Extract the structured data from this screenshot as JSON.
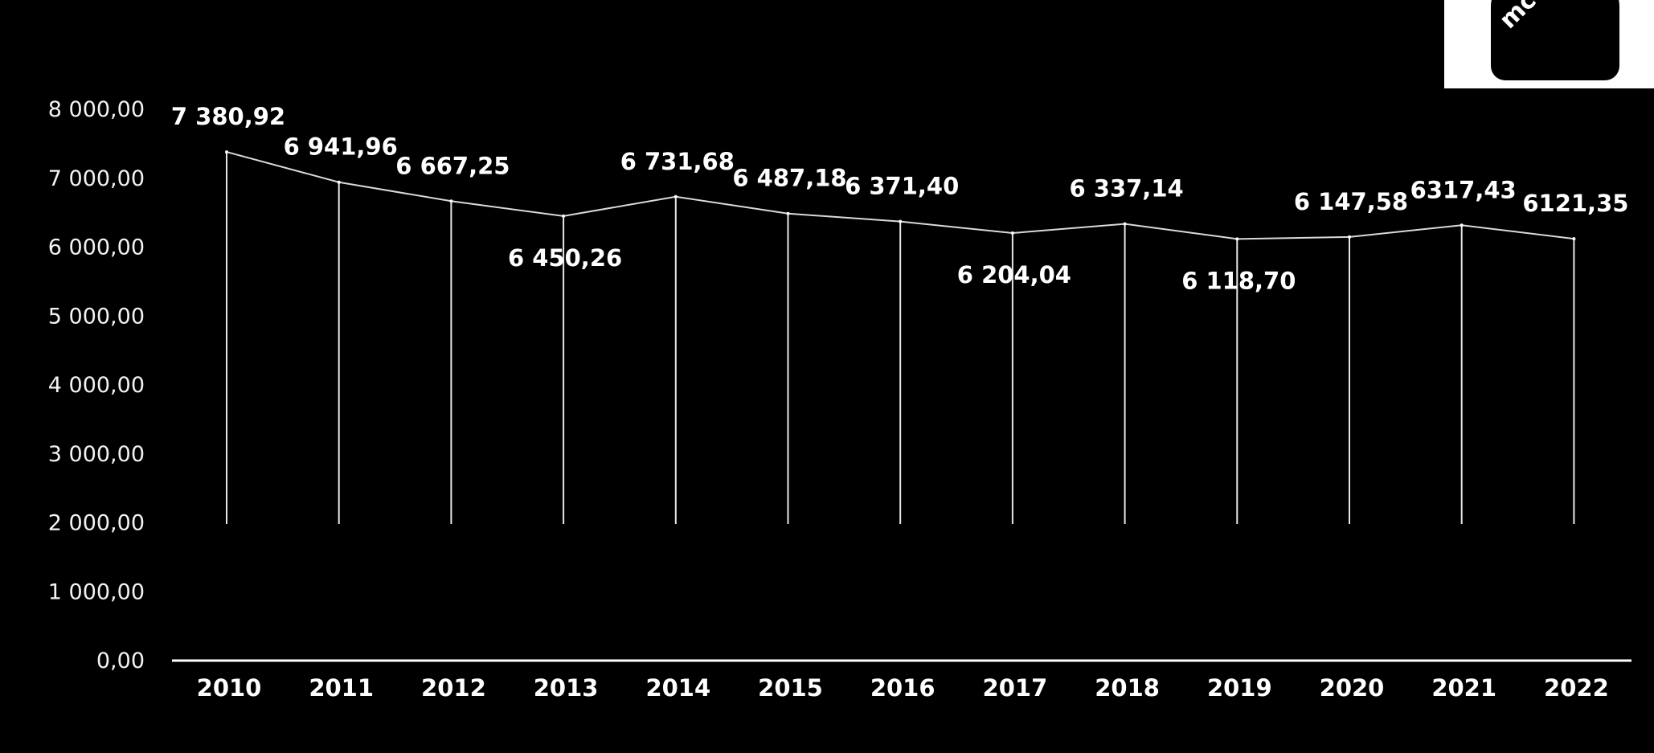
{
  "chart_data": {
    "type": "line",
    "title": "",
    "xlabel": "",
    "ylabel": "",
    "x": [
      "2010",
      "2011",
      "2012",
      "2013",
      "2014",
      "2015",
      "2016",
      "2017",
      "2018",
      "2019",
      "2020",
      "2021",
      "2022"
    ],
    "series": [
      {
        "values": [
          7380.92,
          6941.96,
          6667.25,
          6450.26,
          6731.68,
          6487.18,
          6371.4,
          6204.04,
          6337.14,
          6118.7,
          6147.58,
          6317.43,
          6121.35
        ],
        "labels": [
          "7 380,92",
          "6 941,96",
          "6 667,25",
          "6 450,26",
          "6 731,68",
          "6 487,18",
          "6 371,40",
          "6 204,04",
          "6 337,14",
          "6 118,70",
          "6 147,58",
          "6317,43",
          "6121,35"
        ]
      }
    ],
    "ylim": [
      0,
      8000
    ],
    "yticks": [
      0,
      1000,
      2000,
      3000,
      4000,
      5000,
      6000,
      7000,
      8000
    ],
    "ytick_labels": [
      "0,00",
      "1 000,00",
      "2 000,00",
      "3 000,00",
      "4 000,00",
      "5 000,00",
      "6 000,00",
      "7 000,00",
      "8 000,00"
    ],
    "grid": false,
    "drop_lines": true,
    "colors": {
      "background": "#000000",
      "line": "#ffffff",
      "text": "#ffffff"
    }
  },
  "logo": {
    "text": "mc"
  }
}
